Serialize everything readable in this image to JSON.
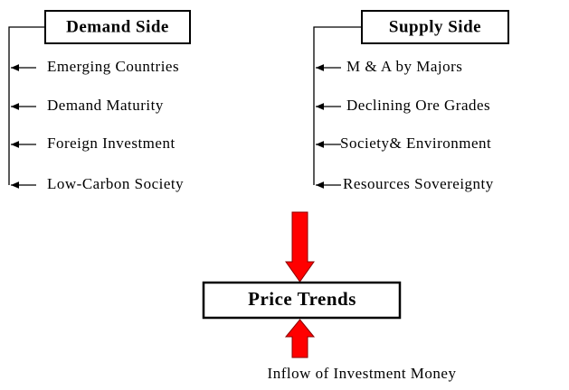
{
  "demand_side": {
    "title": "Demand Side",
    "items": [
      "Emerging Countries",
      "Demand Maturity",
      "Foreign Investment",
      "Low-Carbon Society"
    ]
  },
  "supply_side": {
    "title": "Supply Side",
    "items": [
      "M & A by Majors",
      "Declining Ore Grades",
      "Society& Environment",
      "Resources Sovereignty"
    ]
  },
  "center": {
    "label": "Price Trends"
  },
  "bottom": {
    "label": "Inflow of Investment Money"
  }
}
